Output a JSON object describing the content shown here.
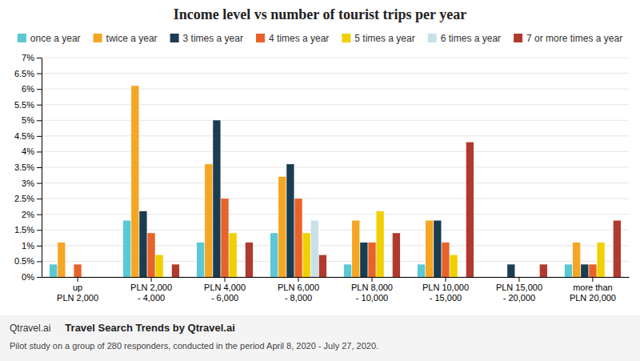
{
  "chart_data": {
    "type": "bar",
    "title": "Income level vs number of tourist trips per year",
    "categories": [
      "up\nPLN 2,000",
      "PLN 2,000\n- 4,000",
      "PLN 4,000\n- 6,000",
      "PLN 6,000\n- 8,000",
      "PLN 8,000\n- 10,000",
      "PLN 10,000\n- 15,000",
      "PLN 15,000\n- 20,000",
      "more than\nPLN 20,000"
    ],
    "series": [
      {
        "name": "once a year",
        "color": "#5bc8d4",
        "values": [
          0.4,
          1.8,
          1.1,
          1.4,
          0.4,
          0.4,
          0.0,
          0.4
        ]
      },
      {
        "name": "twice a year",
        "color": "#f5a623",
        "values": [
          1.1,
          6.1,
          3.6,
          3.2,
          1.8,
          1.8,
          0.0,
          1.1
        ]
      },
      {
        "name": "3 times a year",
        "color": "#1a3d52",
        "values": [
          0.0,
          2.1,
          5.0,
          3.6,
          1.1,
          1.8,
          0.4,
          0.4
        ]
      },
      {
        "name": "4 times a year",
        "color": "#e8622a",
        "values": [
          0.4,
          1.4,
          2.5,
          2.5,
          1.1,
          1.1,
          0.0,
          0.4
        ]
      },
      {
        "name": "5 times a year",
        "color": "#f0d000",
        "values": [
          0.0,
          0.7,
          1.4,
          1.4,
          2.1,
          0.7,
          0.0,
          1.1
        ]
      },
      {
        "name": "6 times a year",
        "color": "#c8e0ea",
        "values": [
          0.0,
          0.0,
          0.0,
          1.8,
          0.0,
          0.0,
          0.0,
          0.0
        ]
      },
      {
        "name": "7 or more times a year",
        "color": "#b03a2e",
        "values": [
          0.0,
          0.4,
          1.1,
          0.7,
          1.4,
          4.3,
          0.4,
          1.8
        ]
      }
    ],
    "ylim": [
      0,
      7
    ],
    "yticks": [
      {
        "value": 0,
        "label": "0%"
      },
      {
        "value": 0.5,
        "label": "0.5%"
      },
      {
        "value": 1.0,
        "label": "1%"
      },
      {
        "value": 1.5,
        "label": "1.5%"
      },
      {
        "value": 2.0,
        "label": "2%"
      },
      {
        "value": 2.5,
        "label": "2.5%"
      },
      {
        "value": 3.0,
        "label": "3%"
      },
      {
        "value": 3.5,
        "label": "3.5%"
      },
      {
        "value": 4.0,
        "label": "4%"
      },
      {
        "value": 4.5,
        "label": "4.5%"
      },
      {
        "value": 5.0,
        "label": "5%"
      },
      {
        "value": 5.5,
        "label": "5.5%"
      },
      {
        "value": 6.0,
        "label": "6%"
      },
      {
        "value": 6.5,
        "label": "6.5%"
      },
      {
        "value": 7.0,
        "label": "7%"
      }
    ],
    "grid": true,
    "legend": "top",
    "annotations": [
      "Qtravel.ai",
      "Travel Search Trends by Qtravel.ai",
      "Pilot study on a group of 280 responders, conducted in the period April 8, 2020 - July 27, 2020."
    ]
  }
}
